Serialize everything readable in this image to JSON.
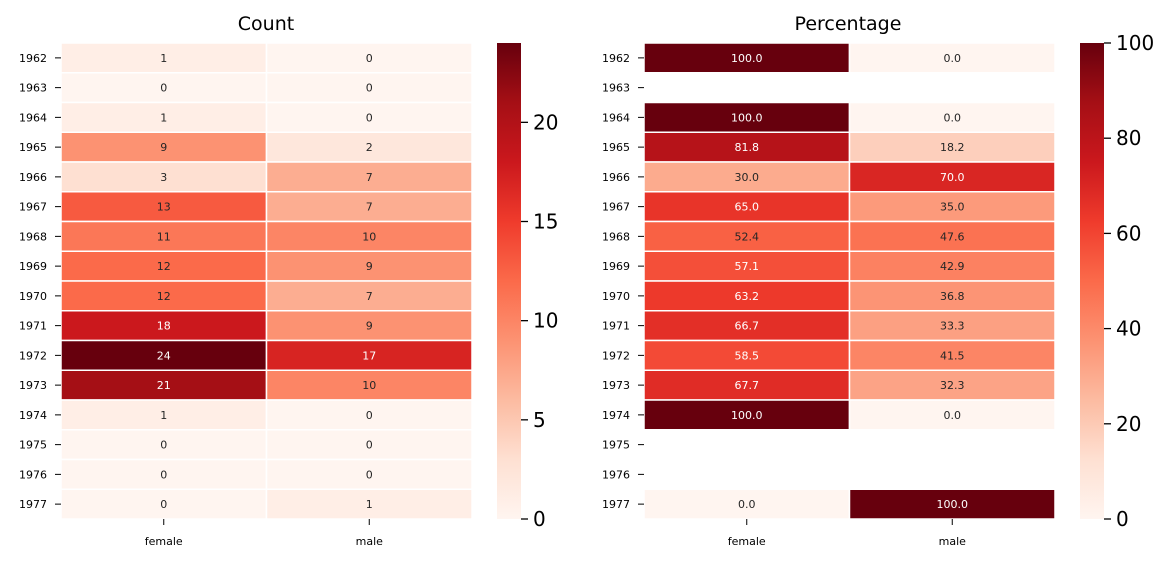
{
  "chart_data": [
    {
      "type": "heatmap",
      "title": "Count",
      "rows": [
        "1962",
        "1963",
        "1964",
        "1965",
        "1966",
        "1967",
        "1968",
        "1969",
        "1970",
        "1971",
        "1972",
        "1973",
        "1974",
        "1975",
        "1976",
        "1977"
      ],
      "columns": [
        "female",
        "male"
      ],
      "values": [
        [
          1,
          0
        ],
        [
          0,
          0
        ],
        [
          1,
          0
        ],
        [
          9,
          2
        ],
        [
          3,
          7
        ],
        [
          13,
          7
        ],
        [
          11,
          10
        ],
        [
          12,
          9
        ],
        [
          12,
          7
        ],
        [
          18,
          9
        ],
        [
          24,
          17
        ],
        [
          21,
          10
        ],
        [
          1,
          0
        ],
        [
          0,
          0
        ],
        [
          0,
          0
        ],
        [
          0,
          1
        ]
      ],
      "cell_labels": [
        [
          "1",
          "0"
        ],
        [
          "0",
          "0"
        ],
        [
          "1",
          "0"
        ],
        [
          "9",
          "2"
        ],
        [
          "3",
          "7"
        ],
        [
          "13",
          "7"
        ],
        [
          "11",
          "10"
        ],
        [
          "12",
          "9"
        ],
        [
          "12",
          "7"
        ],
        [
          "18",
          "9"
        ],
        [
          "24",
          "17"
        ],
        [
          "21",
          "10"
        ],
        [
          "1",
          "0"
        ],
        [
          "0",
          "0"
        ],
        [
          "0",
          "0"
        ],
        [
          "0",
          "1"
        ]
      ],
      "colormap": "Reds",
      "vmin": 0,
      "vmax": 24,
      "colorbar_ticks": [
        0,
        5,
        10,
        15,
        20
      ],
      "colorbar_tick_labels": [
        "0",
        "5",
        "10",
        "15",
        "20"
      ]
    },
    {
      "type": "heatmap",
      "title": "Percentage",
      "rows": [
        "1962",
        "1963",
        "1964",
        "1965",
        "1966",
        "1967",
        "1968",
        "1969",
        "1970",
        "1971",
        "1972",
        "1973",
        "1974",
        "1975",
        "1976",
        "1977"
      ],
      "columns": [
        "female",
        "male"
      ],
      "values": [
        [
          100.0,
          0.0
        ],
        [
          null,
          null
        ],
        [
          100.0,
          0.0
        ],
        [
          81.8,
          18.2
        ],
        [
          30.0,
          70.0
        ],
        [
          65.0,
          35.0
        ],
        [
          52.4,
          47.6
        ],
        [
          57.1,
          42.9
        ],
        [
          63.2,
          36.8
        ],
        [
          66.7,
          33.3
        ],
        [
          58.5,
          41.5
        ],
        [
          67.7,
          32.3
        ],
        [
          100.0,
          0.0
        ],
        [
          null,
          null
        ],
        [
          null,
          null
        ],
        [
          0.0,
          100.0
        ]
      ],
      "cell_labels": [
        [
          "100.0",
          "0.0"
        ],
        [
          "",
          ""
        ],
        [
          "100.0",
          "0.0"
        ],
        [
          "81.8",
          "18.2"
        ],
        [
          "30.0",
          "70.0"
        ],
        [
          "65.0",
          "35.0"
        ],
        [
          "52.4",
          "47.6"
        ],
        [
          "57.1",
          "42.9"
        ],
        [
          "63.2",
          "36.8"
        ],
        [
          "66.7",
          "33.3"
        ],
        [
          "58.5",
          "41.5"
        ],
        [
          "67.7",
          "32.3"
        ],
        [
          "100.0",
          "0.0"
        ],
        [
          "",
          ""
        ],
        [
          "",
          ""
        ],
        [
          "0.0",
          "100.0"
        ]
      ],
      "colormap": "Reds",
      "vmin": 0,
      "vmax": 100,
      "colorbar_ticks": [
        0,
        20,
        40,
        60,
        80,
        100
      ],
      "colorbar_tick_labels": [
        "0",
        "20",
        "40",
        "60",
        "80",
        "100"
      ]
    }
  ]
}
